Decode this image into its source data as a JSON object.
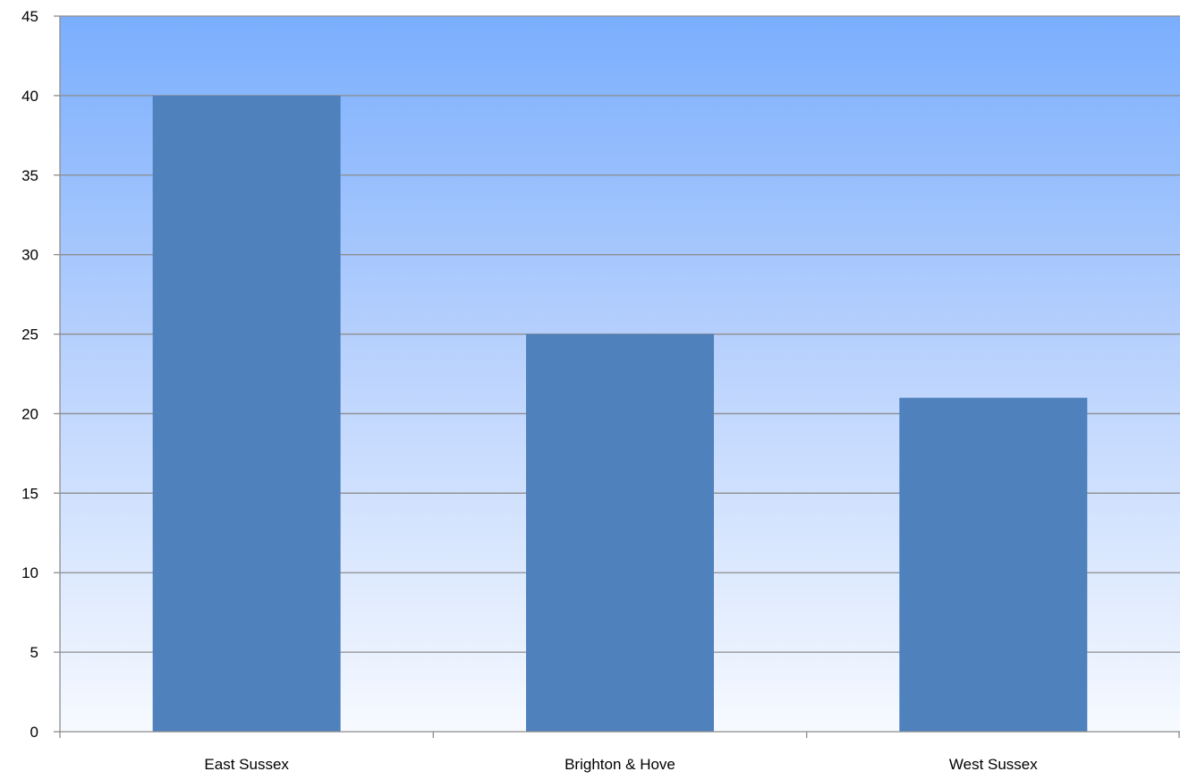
{
  "chart_data": {
    "type": "bar",
    "categories": [
      "East Sussex",
      "Brighton & Hove",
      "West Sussex"
    ],
    "values": [
      40,
      25,
      21
    ],
    "title": "",
    "xlabel": "",
    "ylabel": "",
    "ylim": [
      0,
      45
    ],
    "yticks": [
      "0",
      "5",
      "10",
      "15",
      "20",
      "25",
      "30",
      "35",
      "40",
      "45"
    ],
    "grid": true,
    "legend": "none",
    "colors": {
      "bar": "#4f81bd",
      "background_top": "#7aaefd",
      "background_bottom": "#f7faff",
      "gridline": "#8c8c8c",
      "axis": "#8c8c8c"
    }
  }
}
